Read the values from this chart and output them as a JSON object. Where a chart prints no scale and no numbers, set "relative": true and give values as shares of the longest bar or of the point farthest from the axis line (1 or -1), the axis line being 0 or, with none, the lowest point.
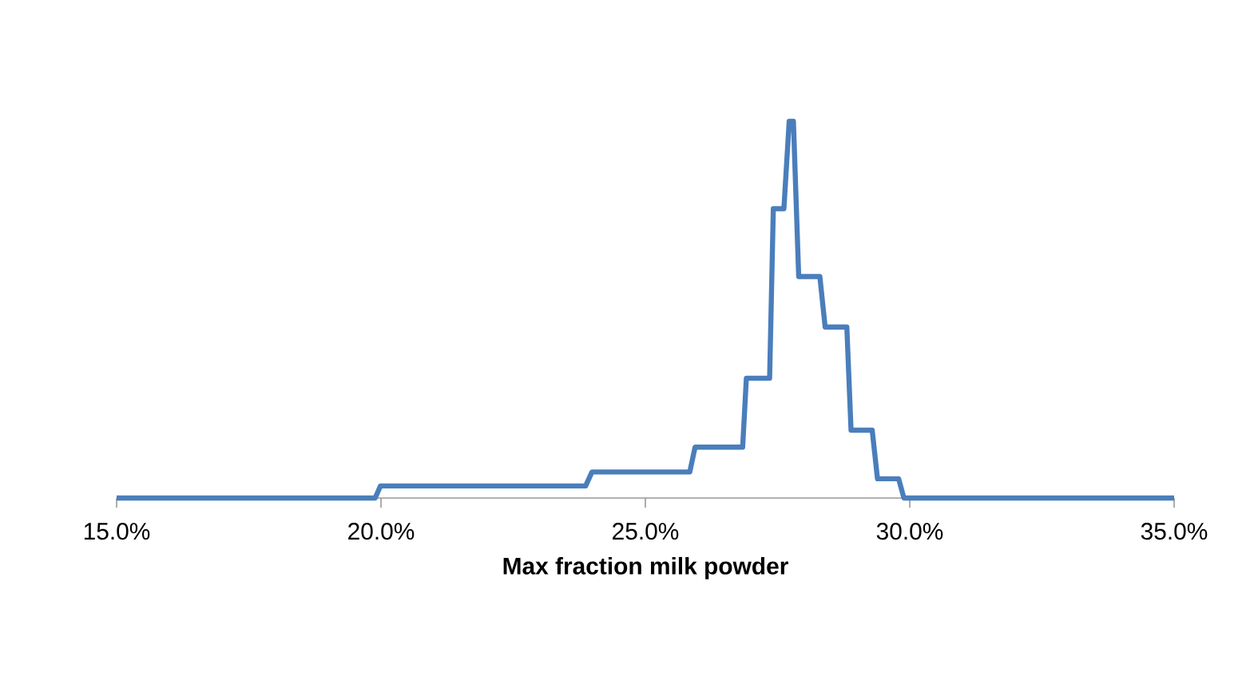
{
  "chart_data": {
    "type": "line",
    "xlabel": "Max fraction milk powder",
    "relative": true,
    "xlim": [
      15,
      35
    ],
    "xticks": [
      {
        "value": 15,
        "label": "15.0%"
      },
      {
        "value": 20,
        "label": "20.0%"
      },
      {
        "value": 25,
        "label": "25.0%"
      },
      {
        "value": 30,
        "label": "30.0%"
      },
      {
        "value": 35,
        "label": "35.0%"
      }
    ],
    "series": [
      {
        "color": "#4a7ebb",
        "x": [
          15.0,
          19.89,
          19.99,
          23.87,
          23.99,
          25.84,
          25.94,
          26.84,
          26.91,
          27.35,
          27.42,
          27.62,
          27.72,
          27.8,
          27.9,
          28.3,
          28.4,
          28.81,
          28.89,
          29.29,
          29.39,
          29.79,
          29.89,
          35.0
        ],
        "values": [
          0,
          0,
          0.032,
          0.032,
          0.069,
          0.069,
          0.135,
          0.135,
          0.318,
          0.318,
          0.768,
          0.768,
          1.0,
          1.0,
          0.588,
          0.588,
          0.454,
          0.454,
          0.18,
          0.18,
          0.051,
          0.051,
          0,
          0
        ]
      }
    ]
  }
}
